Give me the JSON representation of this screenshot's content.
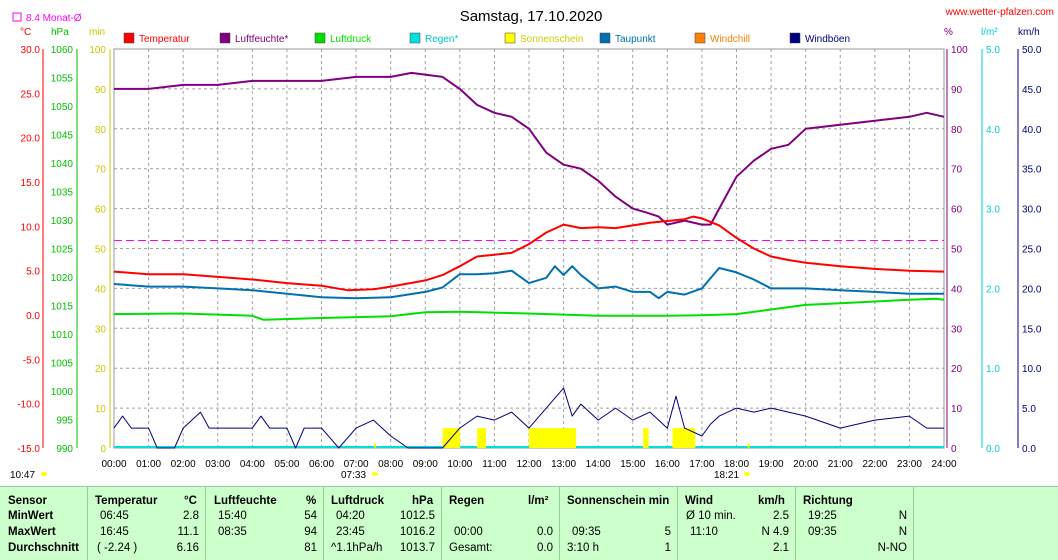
{
  "header": {
    "title": "Samstag, 17.10.2020",
    "site": "www.wetter-pfalzen.com",
    "monthly_avg_label": "8.4 Monat-Ø",
    "sunrise_time": "07:33",
    "sunset_time": "18:21",
    "now_time": "10:47"
  },
  "colors": {
    "temperatur": "#ff0000",
    "luftfeuchte": "#800080",
    "luftdruck": "#00e000",
    "regen": "#00e0e0",
    "sonnenschein": "#ffff00",
    "taupunkt": "#0070b0",
    "windchill": "#ff8000",
    "windboen": "#000080",
    "monthly_avg": "#ff00ff"
  },
  "chart_data": {
    "type": "line",
    "legend": [
      {
        "label": "Temperatur",
        "color": "#ff0000"
      },
      {
        "label": "Luftfeuchte*",
        "color": "#800080"
      },
      {
        "label": "Luftdruck",
        "color": "#00e000"
      },
      {
        "label": "Regen*",
        "color": "#00e0e0"
      },
      {
        "label": "Sonnenschein",
        "color": "#ffff00"
      },
      {
        "label": "Taupunkt",
        "color": "#0070b0"
      },
      {
        "label": "Windchill",
        "color": "#ff8000"
      },
      {
        "label": "Windböen",
        "color": "#000080"
      }
    ],
    "x_ticks": [
      "00:00",
      "01:00",
      "02:00",
      "03:00",
      "04:00",
      "05:00",
      "06:00",
      "07:00",
      "08:00",
      "09:00",
      "10:00",
      "11:00",
      "12:00",
      "13:00",
      "14:00",
      "15:00",
      "16:00",
      "17:00",
      "18:00",
      "19:00",
      "20:00",
      "21:00",
      "22:00",
      "23:00",
      "24:00"
    ],
    "axes": {
      "temperature": {
        "unit": "°C",
        "range": [
          -15,
          30
        ],
        "ticks": [
          "30.0",
          "25.0",
          "20.0",
          "15.0",
          "10.0",
          "5.0",
          "0.0",
          "-5.0",
          "-10.0",
          "-15.0"
        ]
      },
      "pressure": {
        "unit": "hPa",
        "range": [
          990,
          1060
        ],
        "ticks": [
          "1060",
          "1055",
          "1050",
          "1045",
          "1040",
          "1035",
          "1030",
          "1025",
          "1020",
          "1015",
          "1010",
          "1005",
          "1000",
          "995",
          "990"
        ]
      },
      "sunshine": {
        "unit": "min",
        "range": [
          0,
          100
        ],
        "ticks": [
          "100",
          "90",
          "80",
          "70",
          "60",
          "50",
          "40",
          "30",
          "20",
          "10",
          "0"
        ]
      },
      "humidity": {
        "unit": "%",
        "range": [
          0,
          100
        ],
        "ticks": [
          "100",
          "90",
          "80",
          "70",
          "60",
          "50",
          "40",
          "30",
          "20",
          "10",
          "0"
        ]
      },
      "rain": {
        "unit": "l/m²",
        "range": [
          0,
          5
        ],
        "ticks": [
          "5.0",
          "4.0",
          "3.0",
          "2.0",
          "1.0",
          "0.0"
        ]
      },
      "wind": {
        "unit": "km/h",
        "range": [
          0,
          50
        ],
        "ticks": [
          "50.0",
          "45.0",
          "40.0",
          "35.0",
          "30.0",
          "25.0",
          "20.0",
          "15.0",
          "10.0",
          "5.0",
          "0.0"
        ]
      }
    },
    "monthly_avg_temperature": 8.4,
    "series": [
      {
        "name": "Temperatur",
        "axis": "temperature",
        "points": [
          [
            0,
            4.9
          ],
          [
            1,
            4.6
          ],
          [
            2,
            4.6
          ],
          [
            3,
            4.3
          ],
          [
            4,
            4.0
          ],
          [
            5,
            3.6
          ],
          [
            6,
            3.3
          ],
          [
            6.75,
            2.8
          ],
          [
            7.5,
            2.9
          ],
          [
            8,
            3.2
          ],
          [
            9,
            3.9
          ],
          [
            9.5,
            4.5
          ],
          [
            10,
            5.5
          ],
          [
            10.5,
            6.6
          ],
          [
            11,
            6.8
          ],
          [
            11.5,
            7.0
          ],
          [
            12,
            8.0
          ],
          [
            12.5,
            9.3
          ],
          [
            13,
            10.2
          ],
          [
            13.5,
            9.8
          ],
          [
            14,
            9.9
          ],
          [
            14.5,
            9.8
          ],
          [
            15,
            10.1
          ],
          [
            15.5,
            10.4
          ],
          [
            16,
            10.6
          ],
          [
            16.5,
            10.8
          ],
          [
            16.75,
            11.1
          ],
          [
            17,
            10.9
          ],
          [
            17.5,
            10.1
          ],
          [
            18,
            8.7
          ],
          [
            18.5,
            7.5
          ],
          [
            19,
            6.6
          ],
          [
            19.5,
            6.2
          ],
          [
            20,
            5.9
          ],
          [
            21,
            5.5
          ],
          [
            22,
            5.2
          ],
          [
            23,
            5.0
          ],
          [
            24,
            4.9
          ]
        ]
      },
      {
        "name": "Luftfeuchte*",
        "axis": "humidity",
        "points": [
          [
            0,
            90
          ],
          [
            1,
            90
          ],
          [
            2,
            91
          ],
          [
            3,
            91
          ],
          [
            4,
            92
          ],
          [
            5,
            92
          ],
          [
            6,
            92
          ],
          [
            7,
            93
          ],
          [
            8,
            93
          ],
          [
            8.6,
            94
          ],
          [
            9.5,
            93
          ],
          [
            10,
            90
          ],
          [
            10.5,
            86
          ],
          [
            11,
            84
          ],
          [
            11.5,
            83
          ],
          [
            12,
            80
          ],
          [
            12.5,
            74
          ],
          [
            13,
            71
          ],
          [
            13.5,
            70
          ],
          [
            14,
            67
          ],
          [
            14.5,
            63
          ],
          [
            15,
            60
          ],
          [
            15.4,
            59
          ],
          [
            15.75,
            58
          ],
          [
            16,
            56
          ],
          [
            16.5,
            57
          ],
          [
            17,
            56
          ],
          [
            17.25,
            56
          ],
          [
            17.5,
            60
          ],
          [
            18,
            68
          ],
          [
            18.5,
            72
          ],
          [
            19,
            75
          ],
          [
            19.5,
            76
          ],
          [
            20,
            80
          ],
          [
            21,
            81
          ],
          [
            22,
            82
          ],
          [
            23,
            83
          ],
          [
            23.5,
            84
          ],
          [
            24,
            83
          ]
        ]
      },
      {
        "name": "Luftdruck",
        "axis": "pressure",
        "points": [
          [
            0,
            1013.5
          ],
          [
            2,
            1013.6
          ],
          [
            4,
            1013.2
          ],
          [
            4.33,
            1012.5
          ],
          [
            6,
            1012.8
          ],
          [
            8,
            1013.1
          ],
          [
            9,
            1013.8
          ],
          [
            10,
            1013.9
          ],
          [
            12,
            1013.6
          ],
          [
            14,
            1013.2
          ],
          [
            16,
            1013.2
          ],
          [
            17,
            1013.3
          ],
          [
            18,
            1013.5
          ],
          [
            19,
            1014.3
          ],
          [
            20,
            1015.1
          ],
          [
            21,
            1015.4
          ],
          [
            22,
            1015.7
          ],
          [
            23,
            1016.0
          ],
          [
            23.75,
            1016.2
          ],
          [
            24,
            1016.0
          ]
        ]
      },
      {
        "name": "Taupunkt",
        "axis": "temperature",
        "points": [
          [
            0,
            3.5
          ],
          [
            1,
            3.2
          ],
          [
            2,
            3.2
          ],
          [
            3,
            3.0
          ],
          [
            4,
            2.8
          ],
          [
            5,
            2.4
          ],
          [
            6,
            2.0
          ],
          [
            7,
            1.9
          ],
          [
            8,
            2.0
          ],
          [
            9,
            2.6
          ],
          [
            9.5,
            3.1
          ],
          [
            10,
            4.6
          ],
          [
            10.5,
            4.6
          ],
          [
            11,
            4.7
          ],
          [
            11.5,
            5.0
          ],
          [
            12,
            3.6
          ],
          [
            12.5,
            4.2
          ],
          [
            12.75,
            5.5
          ],
          [
            13,
            4.5
          ],
          [
            13.25,
            5.5
          ],
          [
            13.5,
            4.5
          ],
          [
            14,
            3.0
          ],
          [
            14.5,
            3.2
          ],
          [
            15,
            2.6
          ],
          [
            15.5,
            2.6
          ],
          [
            15.75,
            1.9
          ],
          [
            16,
            2.6
          ],
          [
            16.5,
            2.3
          ],
          [
            17,
            3.0
          ],
          [
            17.5,
            5.3
          ],
          [
            18,
            4.8
          ],
          [
            18.5,
            4.0
          ],
          [
            19,
            3.0
          ],
          [
            20,
            3.0
          ],
          [
            21,
            2.8
          ],
          [
            22,
            2.6
          ],
          [
            23,
            2.4
          ],
          [
            24,
            2.4
          ]
        ]
      },
      {
        "name": "Windböen",
        "axis": "wind",
        "points": [
          [
            0,
            2.5
          ],
          [
            0.25,
            4.0
          ],
          [
            0.5,
            2.5
          ],
          [
            1,
            2.5
          ],
          [
            1.25,
            0
          ],
          [
            1.75,
            0
          ],
          [
            2,
            2.5
          ],
          [
            2.5,
            4.5
          ],
          [
            2.75,
            2.5
          ],
          [
            3,
            2.5
          ],
          [
            4,
            2.5
          ],
          [
            4.25,
            4.0
          ],
          [
            4.5,
            2.5
          ],
          [
            5,
            2.5
          ],
          [
            5.25,
            0
          ],
          [
            5.5,
            2.5
          ],
          [
            6,
            2.5
          ],
          [
            6.5,
            0
          ],
          [
            7,
            2.5
          ],
          [
            7.5,
            3.5
          ],
          [
            8,
            1.5
          ],
          [
            8.5,
            0
          ],
          [
            9,
            0
          ],
          [
            9.5,
            0
          ],
          [
            10,
            2.5
          ],
          [
            10.5,
            4.0
          ],
          [
            11,
            3.5
          ],
          [
            11.5,
            4.5
          ],
          [
            12,
            2.5
          ],
          [
            12.5,
            5.0
          ],
          [
            13,
            7.5
          ],
          [
            13.25,
            4.0
          ],
          [
            13.5,
            5.5
          ],
          [
            14,
            3.5
          ],
          [
            14.5,
            5.0
          ],
          [
            15,
            3.5
          ],
          [
            15.5,
            4.5
          ],
          [
            16,
            2.5
          ],
          [
            16.25,
            6.5
          ],
          [
            16.5,
            2.5
          ],
          [
            17,
            1.5
          ],
          [
            17.25,
            3.0
          ],
          [
            17.5,
            4.0
          ],
          [
            18,
            5.0
          ],
          [
            18.5,
            4.5
          ],
          [
            19,
            5.0
          ],
          [
            20,
            4.0
          ],
          [
            21,
            2.5
          ],
          [
            22,
            3.5
          ],
          [
            23,
            4.0
          ],
          [
            23.5,
            2.5
          ],
          [
            24,
            2.5
          ]
        ]
      }
    ],
    "sunshine_intervals": [
      [
        9.5,
        10.0
      ],
      [
        10.5,
        10.75
      ],
      [
        12.0,
        13.35
      ],
      [
        15.3,
        15.45
      ],
      [
        16.15,
        16.8
      ]
    ],
    "regen_total": 0.0
  },
  "stats": {
    "headers": {
      "sensor": "Sensor",
      "temperatur": "Temperatur",
      "temperatur_unit": "°C",
      "luftfeuchte": "Luftfeuchte",
      "luftfeuchte_unit": "%",
      "luftdruck": "Luftdruck",
      "luftdruck_unit": "hPa",
      "regen": "Regen",
      "regen_unit": "l/m²",
      "sonnenschein": "Sonnenschein min",
      "wind": "Wind",
      "wind_unit": "km/h",
      "richtung": "Richtung"
    },
    "rows": [
      {
        "label": "MinWert",
        "temp_time": "06:45",
        "temp_val": "2.8",
        "hum_time": "15:40",
        "hum_val": "54",
        "press_time": "04:20",
        "press_val": "1012.5",
        "rain_time": "",
        "rain_val": "",
        "sun_time": "",
        "sun_val": "",
        "wind_time": "Ø 10 min.",
        "wind_val": "2.5",
        "dir_time": "19:25",
        "dir_val": "N"
      },
      {
        "label": "MaxWert",
        "temp_time": "16:45",
        "temp_val": "11.1",
        "hum_time": "08:35",
        "hum_val": "94",
        "press_time": "23:45",
        "press_val": "1016.2",
        "rain_time": "00:00",
        "rain_val": "0.0",
        "sun_time": "09:35",
        "sun_val": "5",
        "wind_time": "11:10",
        "wind_val": "N 4.9",
        "dir_time": "09:35",
        "dir_val": "N"
      },
      {
        "label": "Durchschnitt",
        "temp_time": "( -2.24 )",
        "temp_val": "6.16",
        "hum_time": "",
        "hum_val": "81",
        "press_time": "^1.1hPa/h",
        "press_val": "1013.7",
        "rain_time": "Gesamt:",
        "rain_val": "0.0",
        "sun_time": "3:10 h",
        "sun_val": "1",
        "wind_time": "",
        "wind_val": "2.1",
        "dir_time": "",
        "dir_val": "N-NO"
      }
    ]
  }
}
